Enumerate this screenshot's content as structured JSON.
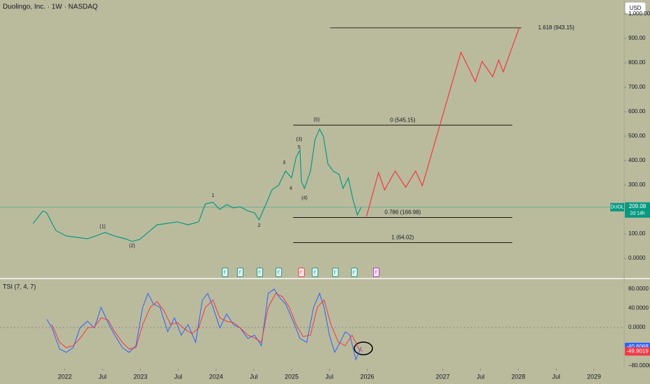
{
  "header": {
    "title": "Duolingo, Inc. · 1W · NASDAQ",
    "currency": "USD"
  },
  "chart_data": [
    {
      "type": "line",
      "ticker": "DUOL",
      "last_price": 209.08,
      "countdown": "2d 14h",
      "xlim": [
        2021.142,
        2029.4
      ],
      "ylim": [
        -80,
        1057
      ],
      "xticks": [
        2022,
        {
          "value": 2022.5,
          "label": "Jul"
        },
        2023,
        {
          "value": 2023.5,
          "label": "Jul"
        },
        2024,
        {
          "value": 2024.5,
          "label": "Jul"
        },
        2025,
        {
          "value": 2025.5,
          "label": "Jul"
        },
        2026,
        2027,
        {
          "value": 2027.5,
          "label": "Jul"
        },
        2028,
        {
          "value": 2028.5,
          "label": "Jul"
        },
        2029
      ],
      "yticks": [
        {
          "value": 0,
          "label": "0.0000"
        },
        {
          "value": 100,
          "label": "100.00"
        },
        {
          "value": 300,
          "label": "300.00"
        },
        {
          "value": 400,
          "label": "400.00"
        },
        {
          "value": 500,
          "label": "500.00"
        },
        {
          "value": 600,
          "label": "600.00"
        },
        {
          "value": 700,
          "label": "700.00"
        },
        {
          "value": 800,
          "label": "800.00"
        },
        {
          "value": 900,
          "label": "900.00"
        },
        {
          "value": 1000,
          "label": "1,000.00"
        }
      ],
      "series": [
        {
          "name": "DUOL",
          "color": "#089981",
          "x": [
            2021.58,
            2021.71,
            2021.76,
            2021.88,
            2022.02,
            2022.16,
            2022.3,
            2022.43,
            2022.53,
            2022.66,
            2022.8,
            2022.89,
            2022.99,
            2023.1,
            2023.22,
            2023.36,
            2023.49,
            2023.63,
            2023.77,
            2023.86,
            2023.96,
            2024.05,
            2024.14,
            2024.23,
            2024.32,
            2024.42,
            2024.51,
            2024.57,
            2024.65,
            2024.74,
            2024.83,
            2024.92,
            2025.0,
            2025.06,
            2025.11,
            2025.13,
            2025.17,
            2025.25,
            2025.31,
            2025.37,
            2025.42,
            2025.48,
            2025.55,
            2025.63,
            2025.68,
            2025.75,
            2025.81,
            2025.87,
            2025.92
          ],
          "values": [
            143,
            194,
            186,
            114,
            91,
            86,
            80,
            94,
            106,
            91,
            80,
            69,
            77,
            106,
            137,
            143,
            149,
            137,
            149,
            223,
            229,
            200,
            220,
            206,
            211,
            194,
            186,
            157,
            214,
            280,
            300,
            357,
            329,
            414,
            443,
            314,
            286,
            357,
            486,
            529,
            500,
            386,
            357,
            343,
            286,
            329,
            243,
            177,
            209.08
          ]
        },
        {
          "name": "Projection",
          "color": "#f23645",
          "x": [
            2025.99,
            2026.15,
            2026.23,
            2026.37,
            2026.51,
            2026.64,
            2026.73,
            2027.24,
            2027.43,
            2027.52,
            2027.66,
            2027.74,
            2027.8,
            2028.01
          ],
          "values": [
            171,
            351,
            280,
            357,
            291,
            357,
            297,
            843,
            723,
            806,
            743,
            811,
            763,
            943
          ]
        }
      ],
      "fib_levels": [
        {
          "value": 545.15,
          "label": "0 (545.15)",
          "x": [
            2025.02,
            2027.92
          ]
        },
        {
          "value": 166.98,
          "label": "0.786 (166.98)",
          "x": [
            2025.02,
            2027.92
          ]
        },
        {
          "value": 64.02,
          "label": "1 (64.02)",
          "x": [
            2025.02,
            2027.92
          ]
        },
        {
          "value": 943.15,
          "label": "1.618 (943.15)",
          "x": [
            2025.51,
            2028.04
          ]
        }
      ],
      "annotations": [
        {
          "text": "(1)",
          "x": 2022.5,
          "y": 129
        },
        {
          "text": "(2)",
          "x": 2022.89,
          "y": 51
        },
        {
          "text": "1",
          "x": 2023.96,
          "y": 257
        },
        {
          "text": "2",
          "x": 2024.57,
          "y": 134
        },
        {
          "text": "3",
          "x": 2024.9,
          "y": 391
        },
        {
          "text": "4",
          "x": 2024.99,
          "y": 286
        },
        {
          "text": "(3)",
          "x": 2025.1,
          "y": 486
        },
        {
          "text": "5",
          "x": 2025.1,
          "y": 454
        },
        {
          "text": "(4)",
          "x": 2025.17,
          "y": 246
        },
        {
          "text": "(5)",
          "x": 2025.33,
          "y": 566
        }
      ],
      "earnings": {
        "label": "E",
        "x": [
          2024.12,
          2024.32,
          2024.58,
          2024.83,
          2025.13,
          2025.31,
          2025.58,
          2025.83,
          2026.12
        ],
        "colors": [
          "#089981",
          "#089981",
          "#089981",
          "#089981",
          "#f23645",
          "#089981",
          "#089981",
          "#089981",
          "#c02bd6"
        ]
      }
    },
    {
      "type": "line",
      "title": "TSI (7, 4, 7)",
      "ylim": [
        -84.4,
        100.4
      ],
      "yticks": [
        {
          "value": 80,
          "label": "80.0000"
        },
        {
          "value": 40,
          "label": "40.0000"
        },
        {
          "value": 0,
          "label": "0.0000"
        },
        {
          "value": -80,
          "label": "−80.0000"
        }
      ],
      "series": [
        {
          "name": "TSI",
          "color": "#2962ff",
          "x": [
            2021.76,
            2021.83,
            2021.93,
            2022.02,
            2022.11,
            2022.2,
            2022.3,
            2022.39,
            2022.48,
            2022.57,
            2022.66,
            2022.76,
            2022.85,
            2022.94,
            2023.03,
            2023.1,
            2023.17,
            2023.26,
            2023.36,
            2023.45,
            2023.54,
            2023.63,
            2023.73,
            2023.82,
            2023.89,
            2023.96,
            2024.05,
            2024.14,
            2024.23,
            2024.32,
            2024.42,
            2024.51,
            2024.6,
            2024.69,
            2024.77,
            2024.83,
            2024.92,
            2025.02,
            2025.11,
            2025.2,
            2025.29,
            2025.37,
            2025.43,
            2025.5,
            2025.57,
            2025.64,
            2025.71,
            2025.77,
            2025.85,
            2025.92
          ],
          "values": [
            17,
            -1,
            -45,
            -52,
            -42,
            -1,
            13,
            -1,
            42,
            10,
            -16,
            -42,
            -52,
            -38,
            42,
            71,
            49,
            42,
            -9,
            20,
            -16,
            6,
            -31,
            57,
            71,
            42,
            -1,
            28,
            6,
            -1,
            -23,
            -16,
            -38,
            71,
            80,
            64,
            49,
            13,
            -23,
            -31,
            42,
            71,
            42,
            -16,
            -52,
            -31,
            -9,
            -16,
            -67,
            -40.6068
          ]
        },
        {
          "name": "Signal",
          "color": "#f23645",
          "x": [
            2021.83,
            2021.93,
            2022.02,
            2022.11,
            2022.2,
            2022.3,
            2022.39,
            2022.48,
            2022.57,
            2022.66,
            2022.76,
            2022.85,
            2022.94,
            2023.03,
            2023.13,
            2023.22,
            2023.31,
            2023.4,
            2023.49,
            2023.59,
            2023.68,
            2023.77,
            2023.86,
            2023.96,
            2024.05,
            2024.14,
            2024.23,
            2024.32,
            2024.42,
            2024.51,
            2024.6,
            2024.69,
            2024.79,
            2024.88,
            2024.97,
            2025.06,
            2025.15,
            2025.25,
            2025.34,
            2025.43,
            2025.52,
            2025.62,
            2025.71,
            2025.8,
            2025.89,
            2025.94
          ],
          "values": [
            6,
            -31,
            -42,
            -38,
            -23,
            -1,
            1,
            20,
            16,
            -9,
            -31,
            -45,
            -42,
            6,
            42,
            54,
            35,
            6,
            10,
            -4,
            -13,
            -1,
            42,
            57,
            20,
            13,
            10,
            -1,
            -16,
            -22,
            -31,
            42,
            71,
            64,
            42,
            6,
            -19,
            -16,
            42,
            57,
            6,
            -31,
            -38,
            -16,
            -45,
            -49.9019
          ]
        }
      ]
    }
  ]
}
